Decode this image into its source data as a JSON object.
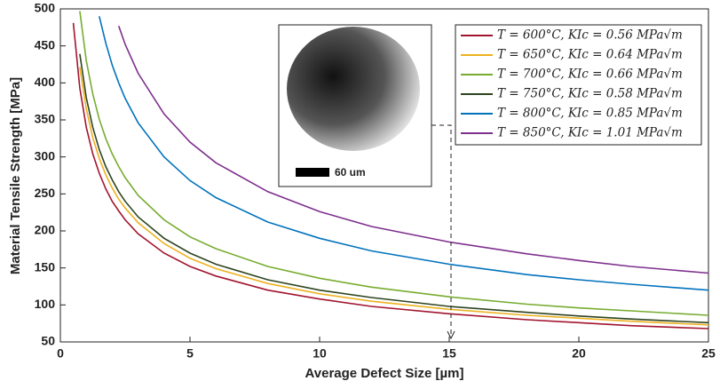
{
  "chart_data": {
    "type": "line",
    "x_label": "Average Defect Size [µm]",
    "y_label": "Material Tensile Strength [MPa]",
    "inset_scale_label": "60 um",
    "x": [
      0.5,
      0.75,
      1,
      1.25,
      1.5,
      1.75,
      2,
      2.25,
      2.5,
      3,
      4,
      5,
      6,
      8,
      10,
      12,
      15,
      18,
      20,
      22,
      25
    ],
    "series": [
      {
        "name": "T = 600°C, KIc = 0.56 MPa√m",
        "color": "#a2142f",
        "values": [
          481,
          393,
          340,
          304,
          278,
          257,
          240,
          227,
          215,
          196,
          170,
          152,
          139,
          120,
          108,
          98,
          88,
          80,
          76,
          72,
          68
        ]
      },
      {
        "name": "T = 650°C, KIc = 0.64 MPa√m",
        "color": "#edb120",
        "values": [
          null,
          421,
          365,
          326,
          298,
          276,
          258,
          243,
          231,
          211,
          183,
          163,
          149,
          129,
          115,
          105,
          94,
          86,
          82,
          78,
          73
        ]
      },
      {
        "name": "T = 700°C, KIc = 0.66 MPa√m",
        "color": "#77ac30",
        "values": [
          null,
          497,
          430,
          385,
          351,
          325,
          304,
          287,
          272,
          248,
          215,
          192,
          176,
          152,
          136,
          124,
          111,
          101,
          96,
          92,
          86
        ]
      },
      {
        "name": "T = 750°C, KIc = 0.58 MPa√m",
        "color": "#2e4420",
        "values": [
          null,
          439,
          380,
          340,
          310,
          287,
          269,
          253,
          240,
          219,
          190,
          170,
          155,
          134,
          120,
          110,
          98,
          90,
          85,
          81,
          76
        ]
      },
      {
        "name": "T = 800°C, KIc = 0.85 MPa√m",
        "color": "#0072bd",
        "values": [
          null,
          null,
          null,
          null,
          490,
          454,
          424,
          400,
          379,
          346,
          300,
          268,
          245,
          212,
          190,
          173,
          155,
          141,
          134,
          128,
          120
        ]
      },
      {
        "name": "T = 850°C, KIc = 1.01 MPa√m",
        "color": "#7e2f8e",
        "values": [
          null,
          null,
          null,
          null,
          null,
          null,
          null,
          477,
          452,
          413,
          358,
          320,
          292,
          253,
          226,
          206,
          185,
          169,
          160,
          152,
          143
        ]
      }
    ],
    "xlim": [
      0,
      25
    ],
    "xticks": [
      0,
      5,
      10,
      15,
      20,
      25
    ],
    "ylim": [
      50,
      500
    ],
    "yticks": [
      50,
      100,
      150,
      200,
      250,
      300,
      350,
      400,
      450,
      500
    ],
    "grid": false,
    "legend_position": "upper right"
  }
}
